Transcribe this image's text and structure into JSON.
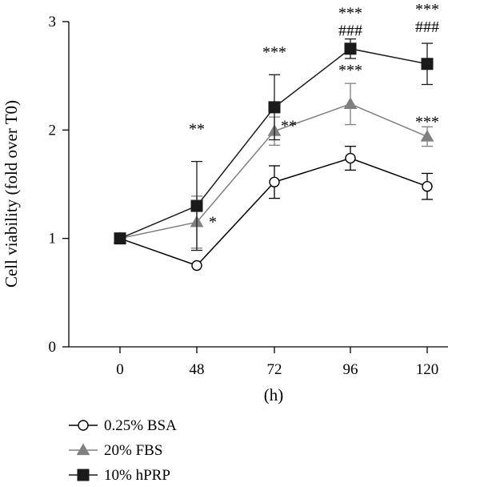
{
  "chart_data": {
    "type": "line",
    "x": [
      0,
      48,
      72,
      96,
      120
    ],
    "x_tick_labels": [
      "0",
      "48",
      "72",
      "96",
      "120"
    ],
    "xlabel": "(h)",
    "ylabel": "Cell viability (fold over T0)",
    "ylim": [
      0,
      3
    ],
    "y_ticks": [
      "0",
      "1",
      "2",
      "3"
    ],
    "grid": false,
    "legend_position": "bottom-left",
    "series": [
      {
        "name": "0.25% BSA",
        "marker": "circle-open",
        "color": "#000000",
        "values": [
          1.0,
          0.75,
          1.52,
          1.74,
          1.48
        ],
        "error": [
          0,
          0,
          0.15,
          0.11,
          0.12
        ],
        "annotations": [
          "",
          "",
          "",
          "",
          ""
        ]
      },
      {
        "name": "20% FBS",
        "marker": "triangle",
        "color": "#808080",
        "values": [
          1.0,
          1.15,
          1.99,
          2.24,
          1.94
        ],
        "error": [
          0,
          0.24,
          0.13,
          0.19,
          0.09
        ],
        "annotations": [
          "",
          "*",
          "**",
          "***",
          "***"
        ]
      },
      {
        "name": "10% hPRP",
        "marker": "square",
        "color": "#1a1a1a",
        "values": [
          1.0,
          1.3,
          2.21,
          2.75,
          2.61
        ],
        "error": [
          0,
          0.41,
          0.3,
          0.09,
          0.19
        ],
        "annotations": [
          "",
          "**",
          "***",
          "***\n###",
          "***\n###"
        ]
      }
    ]
  }
}
